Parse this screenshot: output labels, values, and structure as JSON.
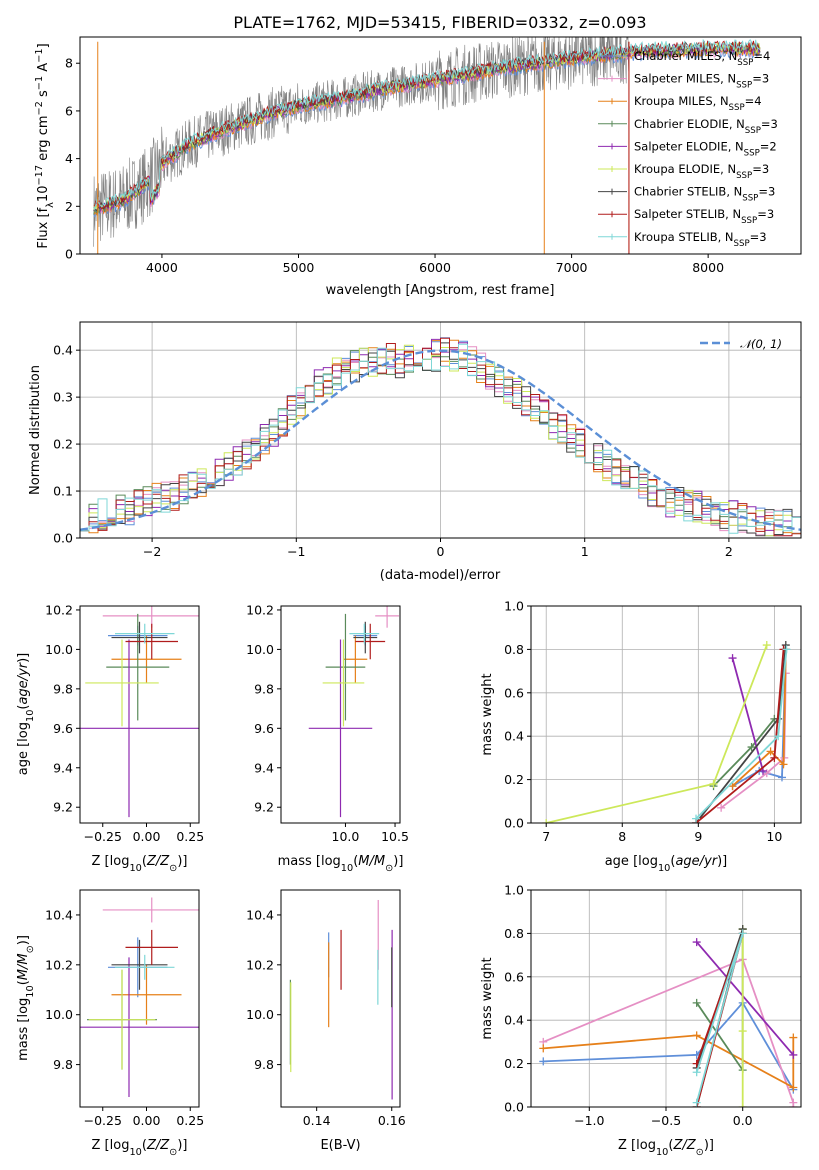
{
  "figure_title": "PLATE=1762, MJD=53415, FIBERID=0332, z=0.093",
  "colors": {
    "Chabrier MILES": "#5f8fd9",
    "Salpeter MILES": "#e58fc4",
    "Kroupa MILES": "#e6801a",
    "Chabrier ELODIE": "#5a8a5a",
    "Salpeter ELODIE": "#8e2ab0",
    "Kroupa ELODIE": "#cde85a",
    "Chabrier STELIB": "#444444",
    "Salpeter STELIB": "#b01c1c",
    "Kroupa STELIB": "#7fd7d7",
    "data": "#808080",
    "normal": "#5b8fd6"
  },
  "chart_data": [
    {
      "id": "spectrum",
      "type": "line",
      "xlabel": "wavelength [Angstrom, rest frame]",
      "ylabel": "Flux [fλ10⁻¹⁷ erg cm⁻² s⁻¹ A⁻¹]",
      "xlim": [
        3400,
        8680
      ],
      "ylim": [
        0,
        9.1
      ],
      "xticks": [
        4000,
        5000,
        6000,
        7000,
        8000
      ],
      "yticks": [
        0,
        2,
        4,
        6,
        8
      ],
      "legend_loc": "top-right",
      "legend": [
        "Chabrier MILES, N_SSP=4",
        "Salpeter MILES, N_SSP=3",
        "Kroupa MILES, N_SSP=4",
        "Chabrier ELODIE, N_SSP=3",
        "Salpeter ELODIE, N_SSP=2",
        "Kroupa ELODIE, N_SSP=3",
        "Chabrier STELIB, N_SSP=3",
        "Salpeter STELIB, N_SSP=3",
        "Kroupa STELIB, N_SSP=3"
      ],
      "model_continuum": {
        "x": [
          3500,
          3700,
          3900,
          4000,
          4200,
          4400,
          4600,
          4800,
          5000,
          5300,
          5600,
          6000,
          6500,
          7000,
          7500,
          8000,
          8400
        ],
        "y": [
          1.9,
          2.2,
          3.0,
          3.8,
          4.6,
          5.1,
          5.5,
          5.9,
          6.2,
          6.5,
          6.9,
          7.3,
          7.8,
          8.2,
          8.5,
          8.6,
          8.6
        ]
      },
      "data_range": {
        "xmin": 3500,
        "xmax": 7420
      }
    },
    {
      "id": "residuals",
      "type": "histogram",
      "xlabel": "(data-model)/error",
      "ylabel": "Normed distribution",
      "xlim": [
        -2.5,
        2.5
      ],
      "ylim": [
        0,
        0.46
      ],
      "xticks": [
        -2,
        -1,
        0,
        1,
        2
      ],
      "yticks": [
        0.0,
        0.1,
        0.2,
        0.3,
        0.4
      ],
      "grid": true,
      "legend_loc": "top-right",
      "reference_legend": "𝒩(0, 1)",
      "bin_width": 0.1,
      "base_hist": [
        0.05,
        0.045,
        0.05,
        0.055,
        0.06,
        0.055,
        0.07,
        0.08,
        0.09,
        0.085,
        0.09,
        0.1,
        0.11,
        0.12,
        0.125,
        0.14,
        0.15,
        0.165,
        0.18,
        0.195,
        0.21,
        0.23,
        0.25,
        0.27,
        0.29,
        0.31,
        0.33,
        0.34,
        0.35,
        0.36,
        0.365,
        0.37,
        0.375,
        0.38,
        0.38,
        0.375,
        0.38,
        0.38,
        0.385,
        0.39,
        0.395,
        0.39,
        0.385,
        0.375,
        0.365,
        0.35,
        0.335,
        0.32,
        0.305,
        0.29,
        0.275,
        0.26,
        0.245,
        0.23,
        0.215,
        0.2,
        0.185,
        0.17,
        0.155,
        0.145,
        0.13,
        0.12,
        0.11,
        0.1,
        0.09,
        0.08,
        0.075,
        0.07,
        0.065,
        0.06,
        0.055,
        0.05,
        0.045,
        0.04,
        0.038,
        0.035,
        0.03,
        0.03,
        0.028,
        0.025
      ]
    },
    {
      "id": "age_vs_Z",
      "type": "errorbar",
      "xlabel": "Z [log10(Z/Z⊙)]",
      "ylabel": "age  [log10(age/yr)]",
      "xlim": [
        -0.38,
        0.3
      ],
      "ylim": [
        9.12,
        10.22
      ],
      "xticks": [
        -0.25,
        0.0,
        0.25
      ],
      "yticks": [
        9.2,
        9.4,
        9.6,
        9.8,
        10.0,
        10.2
      ],
      "points": [
        {
          "model": "Chabrier MILES",
          "x": -0.05,
          "xerr": 0.17,
          "y": 10.07,
          "yerr": 0.05
        },
        {
          "model": "Salpeter MILES",
          "x": 0.03,
          "xerr": 0.28,
          "y": 10.17,
          "yerr": 0.06
        },
        {
          "model": "Kroupa MILES",
          "x": 0.0,
          "xerr": 0.2,
          "y": 9.95,
          "yerr": 0.12
        },
        {
          "model": "Chabrier ELODIE",
          "x": -0.05,
          "xerr": 0.18,
          "y": 9.91,
          "yerr": 0.27
        },
        {
          "model": "Salpeter ELODIE",
          "x": -0.1,
          "xerr": 0.4,
          "y": 9.6,
          "yerr": 0.45
        },
        {
          "model": "Kroupa ELODIE",
          "x": -0.14,
          "xerr": 0.21,
          "y": 9.83,
          "yerr": 0.22
        },
        {
          "model": "Chabrier STELIB",
          "x": -0.04,
          "xerr": 0.16,
          "y": 10.06,
          "yerr": 0.08
        },
        {
          "model": "Salpeter STELIB",
          "x": 0.03,
          "xerr": 0.15,
          "y": 10.04,
          "yerr": 0.09
        },
        {
          "model": "Kroupa STELIB",
          "x": -0.01,
          "xerr": 0.17,
          "y": 10.08,
          "yerr": 0.05
        }
      ]
    },
    {
      "id": "age_vs_mass",
      "type": "errorbar",
      "xlabel": "mass [log10(M/M⊙)]",
      "ylabel": "",
      "xlim": [
        9.35,
        10.55
      ],
      "ylim": [
        9.12,
        10.22
      ],
      "xticks": [
        10.0,
        10.5
      ],
      "yticks": [
        9.2,
        9.4,
        9.6,
        9.8,
        10.0,
        10.2
      ],
      "points": [
        {
          "model": "Chabrier MILES",
          "x": 10.2,
          "xerr": 0.12,
          "y": 10.07,
          "yerr": 0.05
        },
        {
          "model": "Salpeter MILES",
          "x": 10.42,
          "xerr": 0.12,
          "y": 10.17,
          "yerr": 0.06
        },
        {
          "model": "Kroupa MILES",
          "x": 10.1,
          "xerr": 0.12,
          "y": 9.95,
          "yerr": 0.12
        },
        {
          "model": "Chabrier ELODIE",
          "x": 10.0,
          "xerr": 0.2,
          "y": 9.91,
          "yerr": 0.27
        },
        {
          "model": "Salpeter ELODIE",
          "x": 9.95,
          "xerr": 0.32,
          "y": 9.6,
          "yerr": 0.45
        },
        {
          "model": "Kroupa ELODIE",
          "x": 9.98,
          "xerr": 0.21,
          "y": 9.83,
          "yerr": 0.22
        },
        {
          "model": "Chabrier STELIB",
          "x": 10.2,
          "xerr": 0.12,
          "y": 10.06,
          "yerr": 0.08
        },
        {
          "model": "Salpeter STELIB",
          "x": 10.25,
          "xerr": 0.15,
          "y": 10.04,
          "yerr": 0.09
        },
        {
          "model": "Kroupa STELIB",
          "x": 10.19,
          "xerr": 0.15,
          "y": 10.08,
          "yerr": 0.05
        }
      ]
    },
    {
      "id": "mass_weight_vs_age",
      "type": "line",
      "xlabel": "age  [log10(age/yr)]",
      "ylabel": "mass weight",
      "xlim": [
        6.8,
        10.35
      ],
      "ylim": [
        0,
        1.0
      ],
      "xticks": [
        7,
        8,
        9,
        10
      ],
      "yticks": [
        0.0,
        0.2,
        0.4,
        0.6,
        0.8,
        1.0
      ],
      "grid": true,
      "series": [
        {
          "model": "Chabrier MILES",
          "x": [
            9.45,
            9.8,
            10.1,
            10.15
          ],
          "y": [
            0.17,
            0.24,
            0.21,
            0.8
          ]
        },
        {
          "model": "Salpeter MILES",
          "x": [
            9.3,
            9.9,
            10.13,
            10.15
          ],
          "y": [
            0.07,
            0.23,
            0.3,
            0.69
          ]
        },
        {
          "model": "Kroupa MILES",
          "x": [
            9.45,
            9.95,
            10.12,
            10.15
          ],
          "y": [
            0.17,
            0.33,
            0.27,
            0.8
          ]
        },
        {
          "model": "Chabrier ELODIE",
          "x": [
            9.2,
            9.7,
            10.0
          ],
          "y": [
            0.17,
            0.35,
            0.48
          ]
        },
        {
          "model": "Salpeter ELODIE",
          "x": [
            9.45,
            9.85
          ],
          "y": [
            0.76,
            0.24
          ]
        },
        {
          "model": "Kroupa ELODIE",
          "x": [
            7.0,
            9.2,
            9.9
          ],
          "y": [
            0.0,
            0.18,
            0.82
          ]
        },
        {
          "model": "Chabrier STELIB",
          "x": [
            8.97,
            10.05,
            10.15
          ],
          "y": [
            0.0,
            0.48,
            0.82
          ]
        },
        {
          "model": "Salpeter STELIB",
          "x": [
            8.97,
            10.0,
            10.12
          ],
          "y": [
            0.0,
            0.3,
            0.8
          ]
        },
        {
          "model": "Kroupa STELIB",
          "x": [
            8.97,
            10.05,
            10.16
          ],
          "y": [
            0.02,
            0.4,
            0.8
          ]
        }
      ]
    },
    {
      "id": "mass_vs_Z",
      "type": "errorbar",
      "xlabel": "Z [log10(Z/Z⊙)]",
      "ylabel": "mass [log10(M/M⊙)]",
      "xlim": [
        -0.38,
        0.3
      ],
      "ylim": [
        9.63,
        10.5
      ],
      "xticks": [
        -0.25,
        0.0,
        0.25
      ],
      "yticks": [
        9.8,
        10.0,
        10.2,
        10.4
      ],
      "points": [
        {
          "model": "Chabrier MILES",
          "x": -0.05,
          "xerr": 0.17,
          "y": 10.19,
          "yerr": 0.12
        },
        {
          "model": "Salpeter MILES",
          "x": 0.03,
          "xerr": 0.28,
          "y": 10.42,
          "yerr": 0.05
        },
        {
          "model": "Kroupa MILES",
          "x": 0.0,
          "xerr": 0.2,
          "y": 10.08,
          "yerr": 0.12
        },
        {
          "model": "Chabrier ELODIE",
          "x": -0.14,
          "xerr": 0.2,
          "y": 9.98,
          "yerr": 0.2
        },
        {
          "model": "Salpeter ELODIE",
          "x": -0.1,
          "xerr": 0.4,
          "y": 9.95,
          "yerr": 0.28
        },
        {
          "model": "Kroupa ELODIE",
          "x": -0.14,
          "xerr": 0.19,
          "y": 9.98,
          "yerr": 0.2
        },
        {
          "model": "Chabrier STELIB",
          "x": -0.04,
          "xerr": 0.16,
          "y": 10.2,
          "yerr": 0.1
        },
        {
          "model": "Salpeter STELIB",
          "x": 0.03,
          "xerr": 0.15,
          "y": 10.27,
          "yerr": 0.07
        },
        {
          "model": "Kroupa STELIB",
          "x": -0.01,
          "xerr": 0.17,
          "y": 10.19,
          "yerr": 0.05
        }
      ]
    },
    {
      "id": "mass_vs_ebv",
      "type": "errorbar",
      "xlabel": "E(B-V)",
      "ylabel": "",
      "xlim": [
        0.1305,
        0.1622
      ],
      "ylim": [
        9.63,
        10.5
      ],
      "xticks": [
        0.14,
        0.16
      ],
      "yticks": [
        9.8,
        10.0,
        10.2,
        10.4
      ],
      "points": [
        {
          "model": "Chabrier MILES",
          "x": 0.1432,
          "yerr": 0.09,
          "y": 10.24
        },
        {
          "model": "Salpeter MILES",
          "x": 0.1564,
          "yerr": 0.14,
          "y": 10.32
        },
        {
          "model": "Kroupa MILES",
          "x": 0.1432,
          "yerr": 0.17,
          "y": 10.12
        },
        {
          "model": "Chabrier ELODIE",
          "x": 0.133,
          "yerr": 0.17,
          "y": 9.97
        },
        {
          "model": "Salpeter ELODIE",
          "x": 0.1601,
          "yerr": 0.34,
          "y": 10.0
        },
        {
          "model": "Kroupa ELODIE",
          "x": 0.1331,
          "yerr": 0.18,
          "y": 9.95
        },
        {
          "model": "Chabrier STELIB",
          "x": 0.16,
          "yerr": 0.12,
          "y": 10.15
        },
        {
          "model": "Salpeter STELIB",
          "x": 0.1465,
          "yerr": 0.12,
          "y": 10.22
        },
        {
          "model": "Kroupa STELIB",
          "x": 0.1563,
          "yerr": 0.11,
          "y": 10.15
        }
      ]
    },
    {
      "id": "mass_weight_vs_Z",
      "type": "line",
      "xlabel": "Z [log10(Z/Z⊙)]",
      "ylabel": "mass weight",
      "xlim": [
        -1.38,
        0.38
      ],
      "ylim": [
        0,
        1.0
      ],
      "xticks": [
        -1.0,
        -0.5,
        0.0
      ],
      "yticks": [
        0.0,
        0.2,
        0.4,
        0.6,
        0.8,
        1.0
      ],
      "grid": true,
      "series": [
        {
          "model": "Chabrier MILES",
          "x": [
            -1.3,
            -0.3,
            0.0,
            0.33
          ],
          "y": [
            0.21,
            0.24,
            0.48,
            0.08
          ]
        },
        {
          "model": "Salpeter MILES",
          "x": [
            -1.3,
            0.0,
            0.33,
            0.33
          ],
          "y": [
            0.3,
            0.68,
            0.02,
            0.0
          ]
        },
        {
          "model": "Kroupa MILES",
          "x": [
            -1.3,
            -0.3,
            0.33,
            0.33
          ],
          "y": [
            0.27,
            0.33,
            0.09,
            0.32
          ]
        },
        {
          "model": "Chabrier ELODIE",
          "x": [
            -0.3,
            0.0,
            0.0
          ],
          "y": [
            0.48,
            0.17,
            0.82
          ]
        },
        {
          "model": "Salpeter ELODIE",
          "x": [
            -0.3,
            0.33
          ],
          "y": [
            0.76,
            0.24
          ]
        },
        {
          "model": "Kroupa ELODIE",
          "x": [
            0.0,
            0.0,
            0.0
          ],
          "y": [
            0.0,
            0.35,
            0.82
          ]
        },
        {
          "model": "Chabrier STELIB",
          "x": [
            -0.3,
            0.0,
            -0.3
          ],
          "y": [
            0.0,
            0.82,
            0.18
          ]
        },
        {
          "model": "Salpeter STELIB",
          "x": [
            -0.3,
            0.0,
            -0.3
          ],
          "y": [
            0.0,
            0.8,
            0.2
          ]
        },
        {
          "model": "Kroupa STELIB",
          "x": [
            -0.3,
            0.0,
            -0.3
          ],
          "y": [
            0.02,
            0.8,
            0.16
          ]
        }
      ]
    }
  ]
}
